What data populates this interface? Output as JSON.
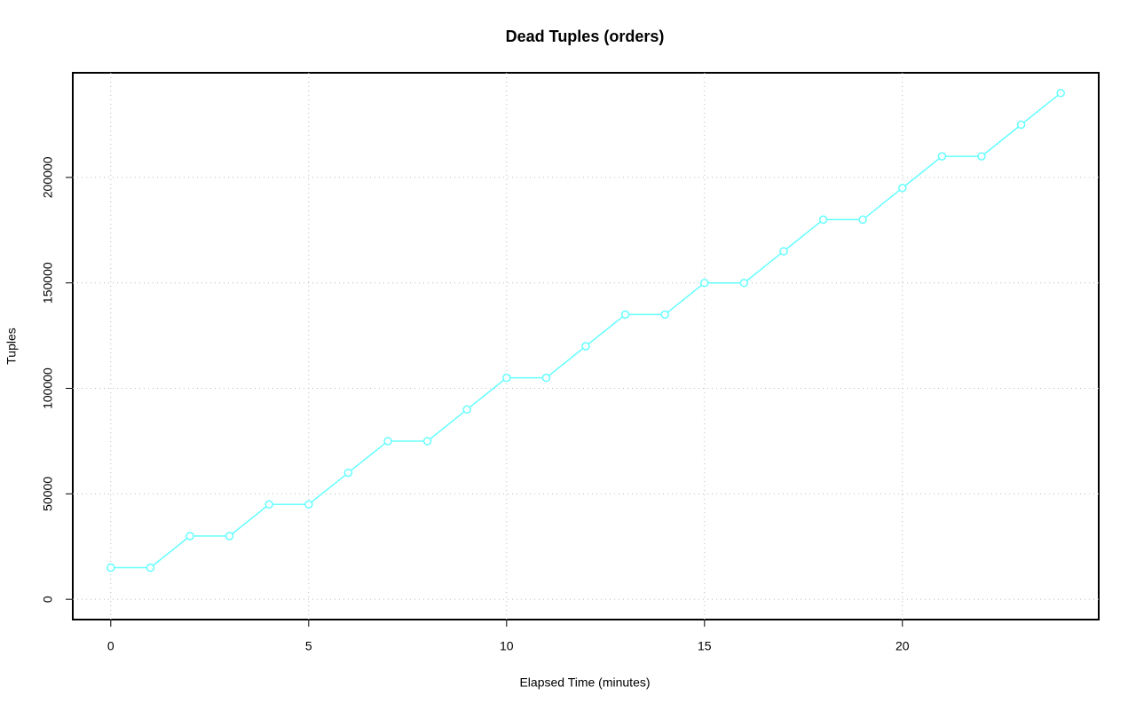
{
  "chart_data": {
    "type": "line",
    "title": "Dead Tuples (orders)",
    "x_label": "Elapsed Time (minutes)",
    "y_label": "Tuples",
    "x": [
      0,
      1,
      2,
      3,
      4,
      5,
      6,
      7,
      8,
      9,
      10,
      11,
      12,
      13,
      14,
      15,
      16,
      17,
      18,
      19,
      20,
      21,
      22,
      23,
      24
    ],
    "values": [
      15000,
      15000,
      30000,
      30000,
      45000,
      45000,
      60000,
      75000,
      75000,
      90000,
      105000,
      105000,
      120000,
      135000,
      135000,
      150000,
      150000,
      165000,
      180000,
      180000,
      195000,
      210000,
      210000,
      225000,
      240000
    ],
    "color": "#66ffff",
    "xlim": [
      -0.96,
      24.96
    ],
    "xticks": [
      0,
      5,
      10,
      15,
      20
    ],
    "ylim": [
      -9600,
      249600
    ],
    "yticks": [
      0,
      50000,
      100000,
      150000,
      200000
    ],
    "grid": true
  }
}
